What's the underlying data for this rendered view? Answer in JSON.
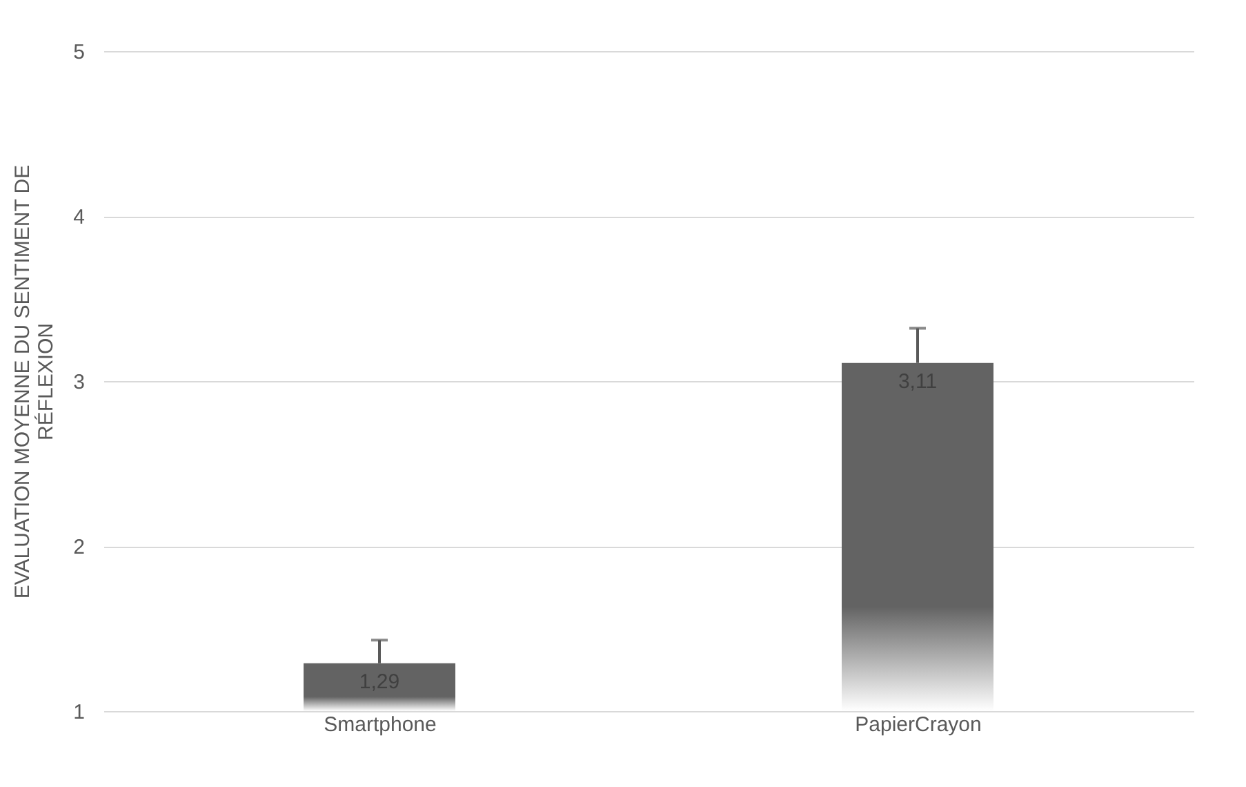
{
  "chart_data": {
    "type": "bar",
    "ylabel": "EVALUATION MOYENNE DU SENTIMENT DE\nRÉFLEXION",
    "categories": [
      "Smartphone",
      "PapierCrayon"
    ],
    "values": [
      1.29,
      3.11
    ],
    "errors": [
      0.14,
      0.21
    ],
    "color": "#636363",
    "ylim": [
      1,
      5
    ],
    "yticks": [
      1,
      2,
      3,
      4,
      5
    ],
    "value_labels": [
      "1,29",
      "3,11"
    ],
    "grid": "y"
  }
}
